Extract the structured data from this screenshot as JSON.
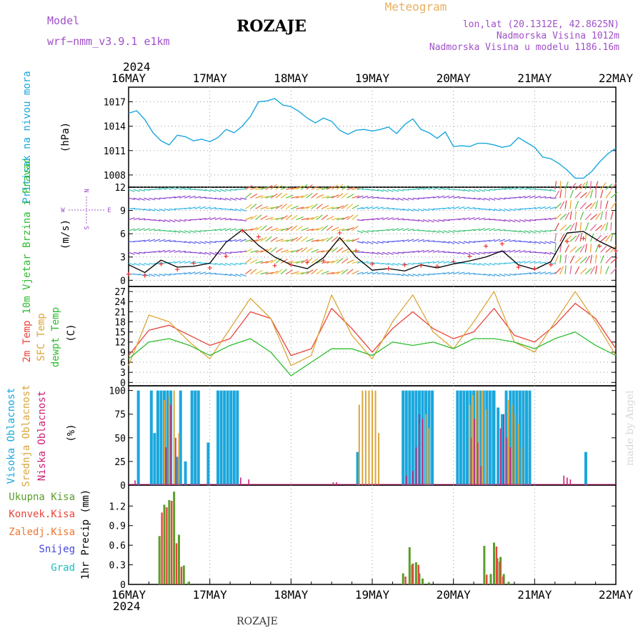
{
  "header": {
    "title": "ROZAJE",
    "subtitle": "Meteogram",
    "model_label": "Model",
    "model_name": "wrf−nmm_v3.9.1 e1km",
    "location": "lon,lat (20.1312E, 42.8625N)",
    "elevation": "Nadmorska Visina 1012m",
    "model_elevation": "Nadmorska Visina u modelu 1186.16m",
    "year_top": "2024",
    "year_bottom": "2024",
    "footer": "ROZAJE",
    "credit": "made by Angel"
  },
  "colors": {
    "pressure": "#1aa7dc",
    "t2m": "#e8453c",
    "sfc": "#dba63c",
    "dewpt": "#2ebd2e",
    "high_cloud": "#1aa7dc",
    "mid_cloud": "#dba63c",
    "low_cloud": "#cc2277",
    "total_precip": "#5a9e2c",
    "conv_precip": "#e8453c",
    "ice_precip": "#ee7733",
    "snow": "#4444dd",
    "graupel": "#22bbbb",
    "model_text": "#a050c8",
    "meteogram_text": "#e8b060"
  },
  "compass": {
    "n": "N",
    "s": "S",
    "e": "E",
    "w": "W"
  },
  "chart_data": [
    {
      "type": "line",
      "name": "pressure",
      "ylabel": "Pritisak na nivou mora",
      "unit": "(hPa)",
      "ylim": [
        1006.5,
        1018.8
      ],
      "yticks": [
        1008,
        1011,
        1014,
        1017
      ],
      "x_categories": [
        "16MAY",
        "17MAY",
        "18MAY",
        "19MAY",
        "20MAY",
        "21MAY",
        "22MAY"
      ],
      "series": [
        {
          "name": "Pritisak na nivou mora",
          "x": [
            0,
            0.1,
            0.2,
            0.3,
            0.4,
            0.5,
            0.6,
            0.7,
            0.8,
            0.9,
            1.0,
            1.1,
            1.2,
            1.3,
            1.4,
            1.5,
            1.6,
            1.7,
            1.8,
            1.9,
            2.0,
            2.1,
            2.2,
            2.3,
            2.4,
            2.5,
            2.6,
            2.7,
            2.8,
            2.9,
            3.0,
            3.1,
            3.2,
            3.3,
            3.4,
            3.5,
            3.6,
            3.7,
            3.8,
            3.9,
            4.0,
            4.1,
            4.2,
            4.3,
            4.4,
            4.5,
            4.6,
            4.7,
            4.8,
            4.9,
            5.0,
            5.1,
            5.2,
            5.3,
            5.4,
            5.5,
            5.6,
            5.7,
            5.8,
            5.9,
            6.0
          ],
          "y": [
            1015.6,
            1015.9,
            1014.8,
            1013.2,
            1012.2,
            1011.7,
            1012.9,
            1012.7,
            1012.2,
            1012.4,
            1012.1,
            1012.6,
            1013.6,
            1013.2,
            1014.0,
            1015.2,
            1017.0,
            1017.1,
            1017.4,
            1016.6,
            1016.4,
            1015.8,
            1015.0,
            1014.4,
            1015.0,
            1014.6,
            1013.5,
            1013.0,
            1013.5,
            1013.6,
            1013.4,
            1013.6,
            1013.9,
            1013.1,
            1014.2,
            1014.9,
            1013.6,
            1013.2,
            1012.5,
            1013.3,
            1011.5,
            1011.6,
            1011.5,
            1011.9,
            1011.9,
            1011.7,
            1011.4,
            1011.6,
            1012.6,
            1012.0,
            1011.4,
            1010.2,
            1010.0,
            1009.4,
            1008.6,
            1007.6,
            1007.6,
            1008.4,
            1009.6,
            1010.6,
            1011.3
          ]
        }
      ]
    },
    {
      "type": "line",
      "name": "wind",
      "ylabel": "10m Vjetar Brzina i Pravac",
      "unit": "(m/s)",
      "ylim": [
        -0.8,
        12
      ],
      "yticks": [
        0,
        3,
        6,
        9,
        12
      ],
      "series": [
        {
          "name": "speed",
          "x": [
            0,
            0.2,
            0.4,
            0.6,
            0.8,
            1.0,
            1.2,
            1.4,
            1.6,
            1.8,
            2.0,
            2.2,
            2.4,
            2.6,
            2.8,
            3.0,
            3.2,
            3.4,
            3.6,
            3.8,
            4.0,
            4.2,
            4.4,
            4.6,
            4.8,
            5.0,
            5.2,
            5.4,
            5.6,
            5.8,
            6.0
          ],
          "y": [
            2.0,
            1.0,
            2.6,
            1.7,
            1.8,
            2.2,
            4.9,
            6.5,
            4.5,
            3.0,
            2.0,
            1.5,
            2.9,
            5.5,
            3.0,
            1.3,
            1.5,
            1.2,
            2.0,
            1.6,
            2.1,
            2.5,
            3.0,
            3.8,
            2.0,
            1.4,
            2.4,
            6.1,
            6.3,
            5.0,
            4.0
          ]
        },
        {
          "name": "gust",
          "x": [
            0,
            0.2,
            0.4,
            0.6,
            0.8,
            1.0,
            1.2,
            1.4,
            1.6,
            1.8,
            2.0,
            2.2,
            2.4,
            2.6,
            2.8,
            3.0,
            3.2,
            3.4,
            3.6,
            3.8,
            4.0,
            4.2,
            4.4,
            4.6,
            4.8,
            5.0,
            5.2,
            5.4,
            5.6,
            5.8,
            6.0
          ],
          "y": [
            0.8,
            0.6,
            2.1,
            1.4,
            2.2,
            1.6,
            3.1,
            6.4,
            5.6,
            1.9,
            2.0,
            2.3,
            2.5,
            6.1,
            3.8,
            2.1,
            1.5,
            2.0,
            1.9,
            1.8,
            2.4,
            3.1,
            4.4,
            4.7,
            1.7,
            1.5,
            2.0,
            5.0,
            5.4,
            4.4,
            3.8
          ]
        }
      ]
    },
    {
      "type": "line",
      "name": "temperature",
      "ylabel": [
        "2m Temp",
        "SFC Temp",
        "dewpt Temp"
      ],
      "unit": "(C)",
      "ylim": [
        -1,
        28.5
      ],
      "yticks": [
        0,
        3,
        6,
        9,
        12,
        15,
        18,
        21,
        24,
        27
      ],
      "series": [
        {
          "name": "2m Temp",
          "x": [
            0,
            0.25,
            0.5,
            0.75,
            1.0,
            1.25,
            1.5,
            1.75,
            2.0,
            2.25,
            2.5,
            2.75,
            3.0,
            3.25,
            3.5,
            3.75,
            4.0,
            4.25,
            4.5,
            4.75,
            5.0,
            5.25,
            5.5,
            5.75,
            6.0
          ],
          "y": [
            8,
            15.5,
            17,
            14,
            11,
            13,
            21,
            19,
            8,
            10,
            22,
            16,
            9,
            16,
            21,
            16,
            13,
            15,
            22,
            14,
            12,
            17,
            23.5,
            19,
            10
          ]
        },
        {
          "name": "SFC Temp",
          "x": [
            0,
            0.25,
            0.5,
            0.75,
            1.0,
            1.25,
            1.5,
            1.75,
            2.0,
            2.25,
            2.5,
            2.75,
            3.0,
            3.25,
            3.5,
            3.75,
            4.0,
            4.25,
            4.5,
            4.75,
            5.0,
            5.25,
            5.5,
            5.75,
            6.0
          ],
          "y": [
            5,
            20,
            18,
            12,
            7,
            16,
            25,
            19,
            5,
            8,
            26,
            14,
            7,
            18,
            26,
            15,
            10,
            18,
            27,
            12,
            9,
            18,
            27,
            18,
            8
          ]
        },
        {
          "name": "dewpt Temp",
          "x": [
            0,
            0.25,
            0.5,
            0.75,
            1.0,
            1.25,
            1.5,
            1.75,
            2.0,
            2.25,
            2.5,
            2.75,
            3.0,
            3.25,
            3.5,
            3.75,
            4.0,
            4.25,
            4.5,
            4.75,
            5.0,
            5.25,
            5.5,
            5.75,
            6.0
          ],
          "y": [
            7,
            12,
            13,
            11,
            8,
            11,
            13,
            9,
            2,
            6,
            10,
            10,
            8,
            12,
            11,
            12,
            10,
            13,
            13,
            12,
            10,
            13,
            15,
            11,
            8
          ]
        }
      ]
    },
    {
      "type": "bar",
      "name": "cloud",
      "ylabel": [
        "Visoka Oblacnost",
        "Srednja Oblacnost",
        "Niska Oblacnost"
      ],
      "unit": "(%)",
      "ylim": [
        0,
        105
      ],
      "yticks": [
        0,
        25,
        50,
        75,
        100
      ],
      "series": [
        {
          "name": "Visoka Oblacnost",
          "x": [
            0.12,
            0.28,
            0.32,
            0.36,
            0.4,
            0.44,
            0.48,
            0.52,
            0.6,
            0.64,
            0.7,
            0.78,
            0.82,
            0.86,
            0.98,
            1.1,
            1.14,
            1.18,
            1.22,
            1.26,
            1.3,
            1.34,
            2.82,
            3.38,
            3.42,
            3.46,
            3.5,
            3.54,
            3.58,
            3.62,
            3.66,
            3.7,
            3.74,
            4.05,
            4.09,
            4.13,
            4.17,
            4.21,
            4.25,
            4.29,
            4.33,
            4.37,
            4.41,
            4.45,
            4.49,
            4.5,
            4.55,
            4.6,
            4.65,
            4.7,
            4.74,
            4.78,
            4.82,
            4.86,
            4.9,
            4.94,
            5.63
          ],
          "y": [
            100,
            100,
            55,
            100,
            100,
            100,
            100,
            100,
            30,
            100,
            25,
            100,
            100,
            100,
            45,
            100,
            100,
            100,
            100,
            100,
            100,
            100,
            35,
            100,
            100,
            100,
            100,
            100,
            100,
            100,
            100,
            100,
            100,
            100,
            100,
            100,
            100,
            100,
            100,
            100,
            100,
            100,
            100,
            100,
            100,
            100,
            82,
            75,
            100,
            100,
            100,
            100,
            100,
            100,
            100,
            100,
            35
          ]
        },
        {
          "name": "Srednja Oblacnost",
          "x": [
            0.44,
            0.5,
            0.56,
            0.62,
            2.84,
            2.88,
            2.92,
            2.96,
            3.0,
            3.04,
            3.08,
            3.58,
            3.62,
            3.66,
            3.7,
            4.2,
            4.24,
            4.28,
            4.32,
            4.36,
            4.4,
            4.68,
            4.72,
            4.76,
            4.8,
            4.84
          ],
          "y": [
            90,
            95,
            100,
            55,
            85,
            100,
            100,
            100,
            100,
            100,
            55,
            65,
            70,
            75,
            60,
            85,
            95,
            100,
            100,
            100,
            80,
            90,
            85,
            75,
            65,
            40
          ]
        },
        {
          "name": "Niska Oblacnost",
          "x": [
            0.08,
            0.46,
            0.52,
            0.58,
            1.38,
            1.48,
            2.52,
            2.56,
            3.42,
            3.5,
            3.54,
            3.58,
            3.62,
            4.22,
            4.26,
            4.3,
            4.34,
            4.58,
            4.62,
            4.66,
            4.7,
            5.36,
            5.4,
            5.44
          ],
          "y": [
            5,
            40,
            85,
            50,
            8,
            6,
            3,
            3,
            10,
            15,
            40,
            75,
            70,
            50,
            70,
            45,
            20,
            60,
            75,
            50,
            40,
            10,
            8,
            6
          ]
        }
      ]
    },
    {
      "type": "bar",
      "name": "precipitation",
      "ylabel": "1hr Precip (mm)",
      "legend": [
        "Ukupna Kisa",
        "Konvek.Kisa",
        "Zaledj.Kisa",
        "Snijeg",
        "Grad"
      ],
      "ylim": [
        0,
        1.52
      ],
      "yticks": [
        0,
        0.3,
        0.6,
        0.9,
        1.2
      ],
      "x_categories": [
        "16MAY",
        "17MAY",
        "18MAY",
        "19MAY",
        "20MAY",
        "21MAY",
        "22MAY"
      ],
      "series": [
        {
          "name": "Ukupna Kisa",
          "x": [
            0.38,
            0.44,
            0.5,
            0.56,
            0.62,
            0.68,
            0.74,
            3.38,
            3.46,
            3.5,
            3.54,
            3.58,
            3.62,
            3.7,
            4.38,
            4.46,
            4.5,
            4.54,
            4.58,
            4.62,
            4.68
          ],
          "y": [
            0.74,
            1.22,
            1.29,
            1.42,
            0.76,
            0.29,
            0.04,
            0.17,
            0.57,
            0.32,
            0.34,
            0.17,
            0.09,
            0.03,
            0.59,
            0.16,
            0.64,
            0.4,
            0.42,
            0.16,
            0.04
          ]
        },
        {
          "name": "Konvek.Kisa",
          "x": [
            0.41,
            0.47,
            0.53,
            0.59,
            0.65,
            3.41,
            3.49,
            3.57,
            4.41,
            4.53,
            4.57,
            4.61
          ],
          "y": [
            1.1,
            1.18,
            1.28,
            0.63,
            0.27,
            0.12,
            0.3,
            0.3,
            0.15,
            0.58,
            0.35,
            0.12
          ]
        }
      ]
    }
  ]
}
